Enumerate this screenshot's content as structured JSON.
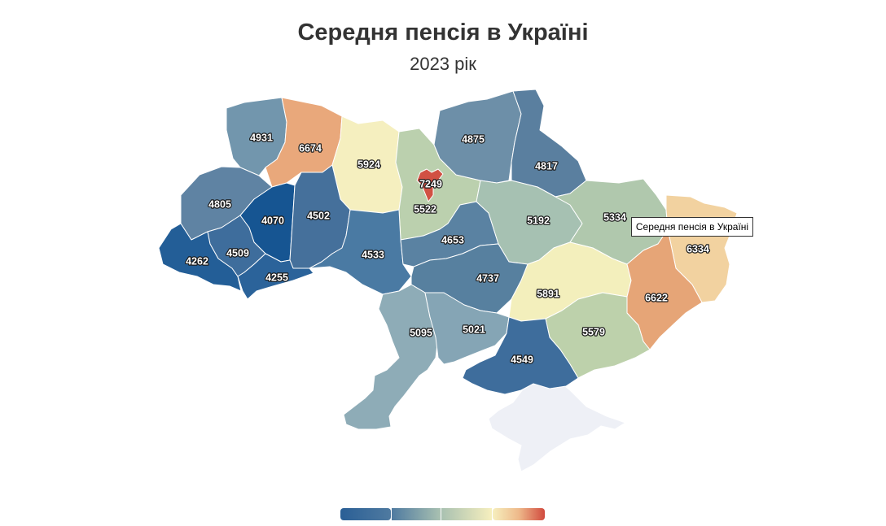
{
  "header": {
    "title": "Середня пенсія в Україні",
    "subtitle": "2023 рік"
  },
  "tooltip": {
    "text": "Середня пенсія в Україні"
  },
  "colors": {
    "scale": [
      "#1f5c99",
      "#4a7aa3",
      "#7fa3b5",
      "#b7ccad",
      "#f3efbc",
      "#f1cc97",
      "#e8a274",
      "#d15143"
    ],
    "no_data": "#eef0f6"
  },
  "regions": [
    {
      "value": "4931"
    },
    {
      "value": "6674"
    },
    {
      "value": "5924"
    },
    {
      "value": "7249"
    },
    {
      "value": "5522"
    },
    {
      "value": "4875"
    },
    {
      "value": "4817"
    },
    {
      "value": "4805"
    },
    {
      "value": "4070"
    },
    {
      "value": "4502"
    },
    {
      "value": "4262"
    },
    {
      "value": "4509"
    },
    {
      "value": "4255"
    },
    {
      "value": "4533"
    },
    {
      "value": "4653"
    },
    {
      "value": "5192"
    },
    {
      "value": "5334"
    },
    {
      "value": "6334"
    },
    {
      "value": "4737"
    },
    {
      "value": "5891"
    },
    {
      "value": "6622"
    },
    {
      "value": "5095"
    },
    {
      "value": "5021"
    },
    {
      "value": "5579"
    },
    {
      "value": "4549"
    }
  ],
  "legend": {
    "colors": [
      "#2a5f96",
      "#4f7aa0",
      "#a9c1b1",
      "#f6efbe",
      "#eeb98a",
      "#d14a3e"
    ]
  }
}
